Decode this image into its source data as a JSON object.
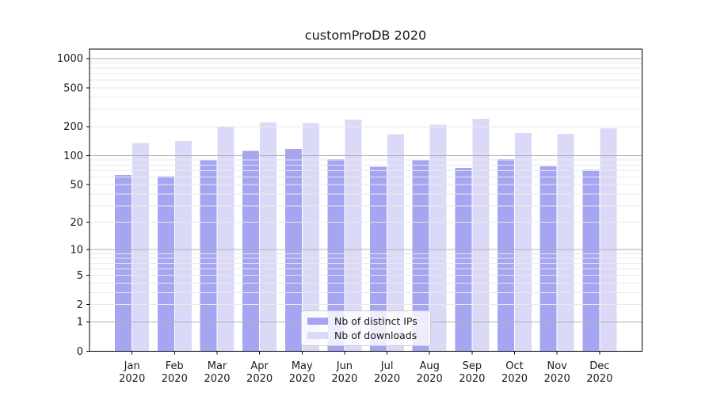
{
  "chart_data": {
    "type": "bar",
    "title": "customProDB 2020",
    "categories": [
      "Jan",
      "Feb",
      "Mar",
      "Apr",
      "May",
      "Jun",
      "Jul",
      "Aug",
      "Sep",
      "Oct",
      "Nov",
      "Dec"
    ],
    "x_tick_second_line": "2020",
    "series": [
      {
        "name": "Nb of distinct IPs",
        "color": "#a5a5f2",
        "values": [
          63,
          61,
          91,
          112,
          118,
          92,
          77,
          91,
          75,
          92,
          78,
          71
        ]
      },
      {
        "name": "Nb of downloads",
        "color": "#dadaf8",
        "values": [
          136,
          142,
          199,
          220,
          216,
          237,
          166,
          209,
          240,
          172,
          168,
          192
        ]
      }
    ],
    "y_scale": "log1p",
    "ylim": [
      0,
      1250
    ],
    "y_ticks": [
      1000,
      500,
      200,
      100,
      50,
      20,
      10,
      5,
      2,
      1,
      0
    ],
    "grid": {
      "major_values": [
        1,
        10,
        100,
        1000
      ],
      "major_color": "#b0b0b0",
      "minor_color": "#e9e9e9",
      "grid_on_top_of_bars": true
    },
    "axis_color": "#000000",
    "text_color": "#1a1a1a",
    "legend": {
      "position": "lower center",
      "border_color": "#cccccc",
      "background": "rgba(255,255,255,0.8)"
    }
  }
}
